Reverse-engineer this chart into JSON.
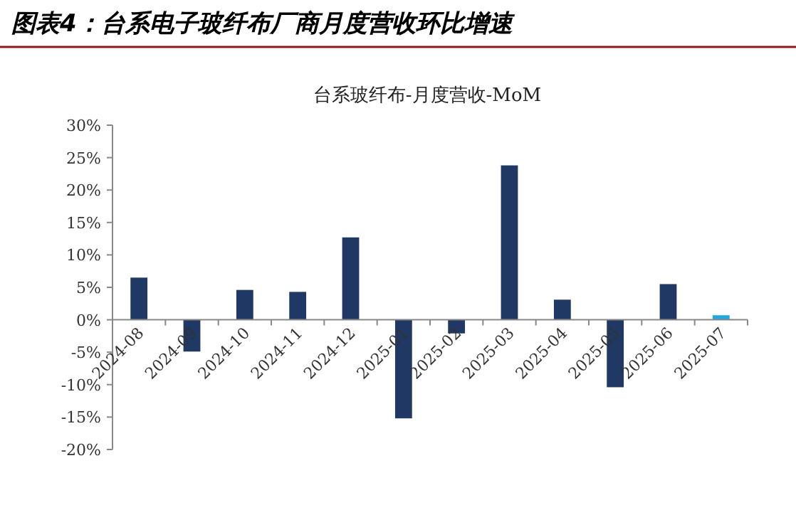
{
  "chart_data": {
    "type": "bar",
    "title": "图表4：台系电子玻纤布厂商月度营收环比增速",
    "subtitle": "台系玻纤布-月度营收-MoM",
    "categories": [
      "2024-08",
      "2024-09",
      "2024-10",
      "2024-11",
      "2024-12",
      "2025-01",
      "2025-02",
      "2025-03",
      "2025-04",
      "2025-05",
      "2025-06",
      "2025-07"
    ],
    "values": [
      6.5,
      -4.9,
      4.6,
      4.3,
      12.7,
      -15.2,
      -2.1,
      23.8,
      3.1,
      -10.4,
      5.5,
      0.7
    ],
    "colors": [
      "#1f3864",
      "#1f3864",
      "#1f3864",
      "#1f3864",
      "#1f3864",
      "#1f3864",
      "#1f3864",
      "#1f3864",
      "#1f3864",
      "#1f3864",
      "#1f3864",
      "#1fa8e0"
    ],
    "ylim": [
      -20,
      30
    ],
    "yticks": [
      {
        "value": -20,
        "label": "-20%"
      },
      {
        "value": -15,
        "label": "-15%"
      },
      {
        "value": -10,
        "label": "-10%"
      },
      {
        "value": -5,
        "label": "-5%"
      },
      {
        "value": 0,
        "label": "0%"
      },
      {
        "value": 5,
        "label": "5%"
      },
      {
        "value": 10,
        "label": "10%"
      },
      {
        "value": 15,
        "label": "15%"
      },
      {
        "value": 20,
        "label": "20%"
      },
      {
        "value": 25,
        "label": "25%"
      },
      {
        "value": 30,
        "label": "30%"
      }
    ],
    "grid": false
  }
}
